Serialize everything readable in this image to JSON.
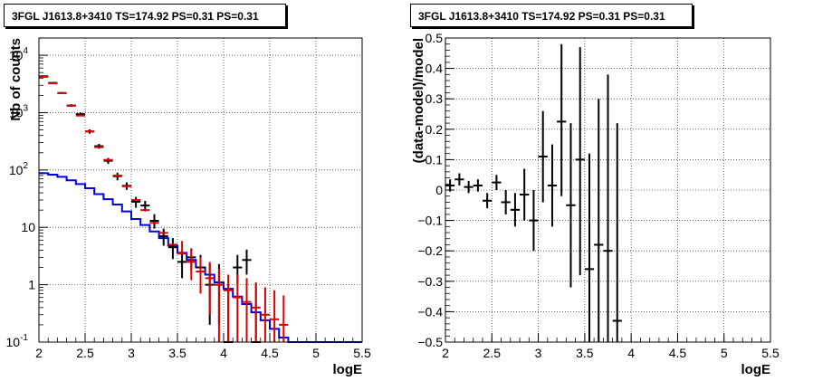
{
  "chart_data": [
    {
      "type": "line",
      "title": "3FGL J1613.8+3410 TS=174.92 PS=0.31 PS=0.31",
      "xlabel": "logE",
      "ylabel": "Nb of counts",
      "xlim": [
        2,
        5.5
      ],
      "ylim": [
        0.1,
        20000
      ],
      "yscale": "log",
      "grid": true,
      "xticks": [
        "2",
        "2.5",
        "3",
        "3.5",
        "4",
        "4.5",
        "5",
        "5.5"
      ],
      "yticks": [
        {
          "value": 0.1,
          "label": "10",
          "exp": "-1"
        },
        {
          "value": 1,
          "label": "1",
          "exp": ""
        },
        {
          "value": 10,
          "label": "10",
          "exp": ""
        },
        {
          "value": 100,
          "label": "10",
          "exp": "2"
        },
        {
          "value": 1000,
          "label": "10",
          "exp": "3"
        },
        {
          "value": 10000,
          "label": "10",
          "exp": "4"
        }
      ],
      "series": [
        {
          "role": "data",
          "color": "#000000",
          "x": [
            2.05,
            2.15,
            2.25,
            2.35,
            2.45,
            2.55,
            2.65,
            2.75,
            2.85,
            2.95,
            3.05,
            3.15,
            3.25,
            3.35,
            3.45,
            3.55,
            3.65,
            3.75,
            3.85,
            3.95,
            4.05,
            4.15,
            4.25,
            4.35
          ],
          "y": [
            4300,
            3300,
            2200,
            1330,
            940,
            470,
            260,
            145,
            78,
            53,
            28,
            24,
            13,
            7,
            4.5,
            2.5,
            3.0,
            2.0,
            1.0,
            1.0,
            0.1,
            2.0,
            2.7,
            0.1
          ],
          "ylow": [
            4150,
            3180,
            2110,
            1260,
            880,
            430,
            235,
            128,
            66,
            45,
            22,
            19,
            9.5,
            4.8,
            2.8,
            1.3,
            1.8,
            1.0,
            0.2,
            0.2,
            0.1,
            1.0,
            1.5,
            0.1
          ],
          "yhigh": [
            4450,
            3420,
            2290,
            1400,
            1000,
            510,
            285,
            162,
            90,
            61,
            34,
            29,
            17,
            9.5,
            6.5,
            3.8,
            4.3,
            3.3,
            2.3,
            2.3,
            1.0,
            3.3,
            4.1,
            1.0
          ]
        },
        {
          "role": "model",
          "color": "#dd0000",
          "x": [
            2.05,
            2.15,
            2.25,
            2.35,
            2.45,
            2.55,
            2.65,
            2.75,
            2.85,
            2.95,
            3.05,
            3.15,
            3.25,
            3.35,
            3.45,
            3.55,
            3.65,
            3.75,
            3.85,
            3.95,
            4.05,
            4.15,
            4.25,
            4.35,
            4.45,
            4.55,
            4.65
          ],
          "y": [
            4200,
            3250,
            2180,
            1320,
            890,
            470,
            250,
            150,
            80,
            52,
            30,
            20,
            12,
            8,
            5,
            3.5,
            2.5,
            1.7,
            1.3,
            1.0,
            0.8,
            0.6,
            0.5,
            0.4,
            0.3,
            0.25,
            0.2
          ],
          "ylow": [
            4200,
            3250,
            2180,
            1320,
            890,
            470,
            250,
            150,
            80,
            52,
            30,
            20,
            12,
            8,
            5,
            3.5,
            1.2,
            0.7,
            0.3,
            0.1,
            0.1,
            0.1,
            0.1,
            0.1,
            0.1,
            0.1,
            0.1
          ],
          "yhigh": [
            4200,
            3250,
            2180,
            1320,
            890,
            470,
            250,
            150,
            80,
            52,
            30,
            20,
            12,
            8,
            5,
            5.8,
            4.2,
            3.0,
            2.5,
            1.9,
            1.5,
            1.5,
            1.3,
            1.1,
            0.9,
            0.8,
            0.65
          ]
        },
        {
          "role": "background",
          "color": "#0000dd",
          "edges": [
            2.0,
            2.1,
            2.2,
            2.3,
            2.4,
            2.5,
            2.6,
            2.7,
            2.8,
            2.9,
            3.0,
            3.1,
            3.2,
            3.3,
            3.4,
            3.5,
            3.6,
            3.7,
            3.8,
            3.9,
            4.0,
            4.1,
            4.2,
            4.3,
            4.4,
            4.5,
            4.6,
            4.7,
            5.5
          ],
          "values": [
            88,
            83,
            76,
            66,
            57,
            48,
            38,
            31,
            25,
            19,
            14,
            11,
            8.5,
            6.5,
            4.8,
            3.6,
            2.7,
            2.0,
            1.5,
            1.1,
            0.85,
            0.62,
            0.46,
            0.33,
            0.24,
            0.17,
            0.12,
            0.1
          ]
        }
      ]
    },
    {
      "type": "scatter",
      "title": "3FGL J1613.8+3410 TS=174.92 PS=0.31 PS=0.31",
      "xlabel": "logE",
      "ylabel": "(data-model)/model",
      "xlim": [
        2,
        5.5
      ],
      "ylim": [
        -0.5,
        0.5
      ],
      "grid": true,
      "xticks": [
        "2",
        "2.5",
        "3",
        "3.5",
        "4",
        "4.5",
        "5",
        "5.5"
      ],
      "yticks": [
        "-0.5",
        "-0.4",
        "-0.3",
        "-0.2",
        "-0.1",
        "0",
        "0.1",
        "0.2",
        "0.3",
        "0.4",
        "0.5"
      ],
      "series": [
        {
          "color": "#000000",
          "x": [
            2.05,
            2.15,
            2.25,
            2.35,
            2.45,
            2.55,
            2.65,
            2.75,
            2.85,
            2.95,
            3.05,
            3.15,
            3.25,
            3.35,
            3.45,
            3.55,
            3.65,
            3.75,
            3.85
          ],
          "y": [
            0.015,
            0.035,
            0.01,
            0.015,
            -0.035,
            0.025,
            -0.04,
            -0.065,
            -0.015,
            -0.1,
            0.11,
            0.015,
            0.225,
            -0.05,
            0.1,
            -0.26,
            -0.18,
            -0.2,
            -0.43
          ],
          "ylow": [
            -0.005,
            0.015,
            -0.01,
            -0.005,
            -0.06,
            0.0,
            -0.08,
            -0.12,
            -0.1,
            -0.2,
            -0.04,
            -0.12,
            -0.02,
            -0.32,
            -0.28,
            -0.5,
            -0.5,
            -0.5,
            -0.5
          ],
          "yhigh": [
            0.035,
            0.055,
            0.03,
            0.035,
            -0.01,
            0.05,
            0.0,
            -0.01,
            0.07,
            0.0,
            0.26,
            0.15,
            0.48,
            0.22,
            0.47,
            0.12,
            0.3,
            0.38,
            0.22
          ]
        }
      ]
    }
  ]
}
